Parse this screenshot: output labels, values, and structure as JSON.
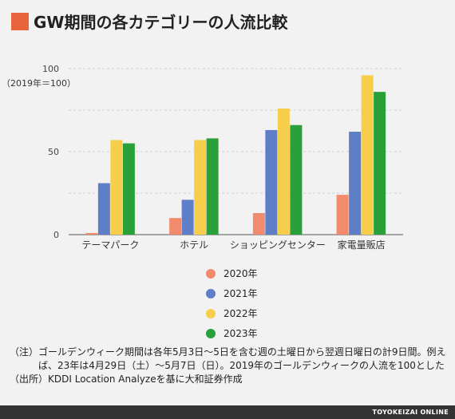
{
  "title": "GW期間の各カテゴリーの人流比較",
  "accent_color": "#e8643c",
  "chart_data": {
    "type": "bar",
    "ylabel": "（2019年＝100）",
    "ylim": [
      0,
      100
    ],
    "yticks": [
      "0",
      "50",
      "100"
    ],
    "grid": true,
    "categories": [
      "テーマパーク",
      "ホテル",
      "ショッピングセンター",
      "家電量販店"
    ],
    "series": [
      {
        "name": "2020年",
        "color": "#f28b6e",
        "values": [
          1,
          10,
          13,
          24
        ]
      },
      {
        "name": "2021年",
        "color": "#5f7ec8",
        "values": [
          31,
          21,
          63,
          62
        ]
      },
      {
        "name": "2022年",
        "color": "#f7ce4c",
        "values": [
          57,
          57,
          76,
          96
        ]
      },
      {
        "name": "2023年",
        "color": "#29a03a",
        "values": [
          55,
          58,
          66,
          86
        ]
      }
    ],
    "legend_position": "bottom"
  },
  "notes": [
    {
      "prefix": "（注）",
      "text": "ゴールデンウィーク期間は各年5月3日〜5日を含む週の土曜日から翌週日曜日の計9日間。例えば、23年は4月29日（土）〜5月7日（日）。2019年のゴールデンウィークの人流を100とした"
    },
    {
      "prefix": "（出所）",
      "text": "KDDI Location Analyzeを基に大和証券作成"
    }
  ],
  "footer": "TOYOKEIZAI ONLINE"
}
